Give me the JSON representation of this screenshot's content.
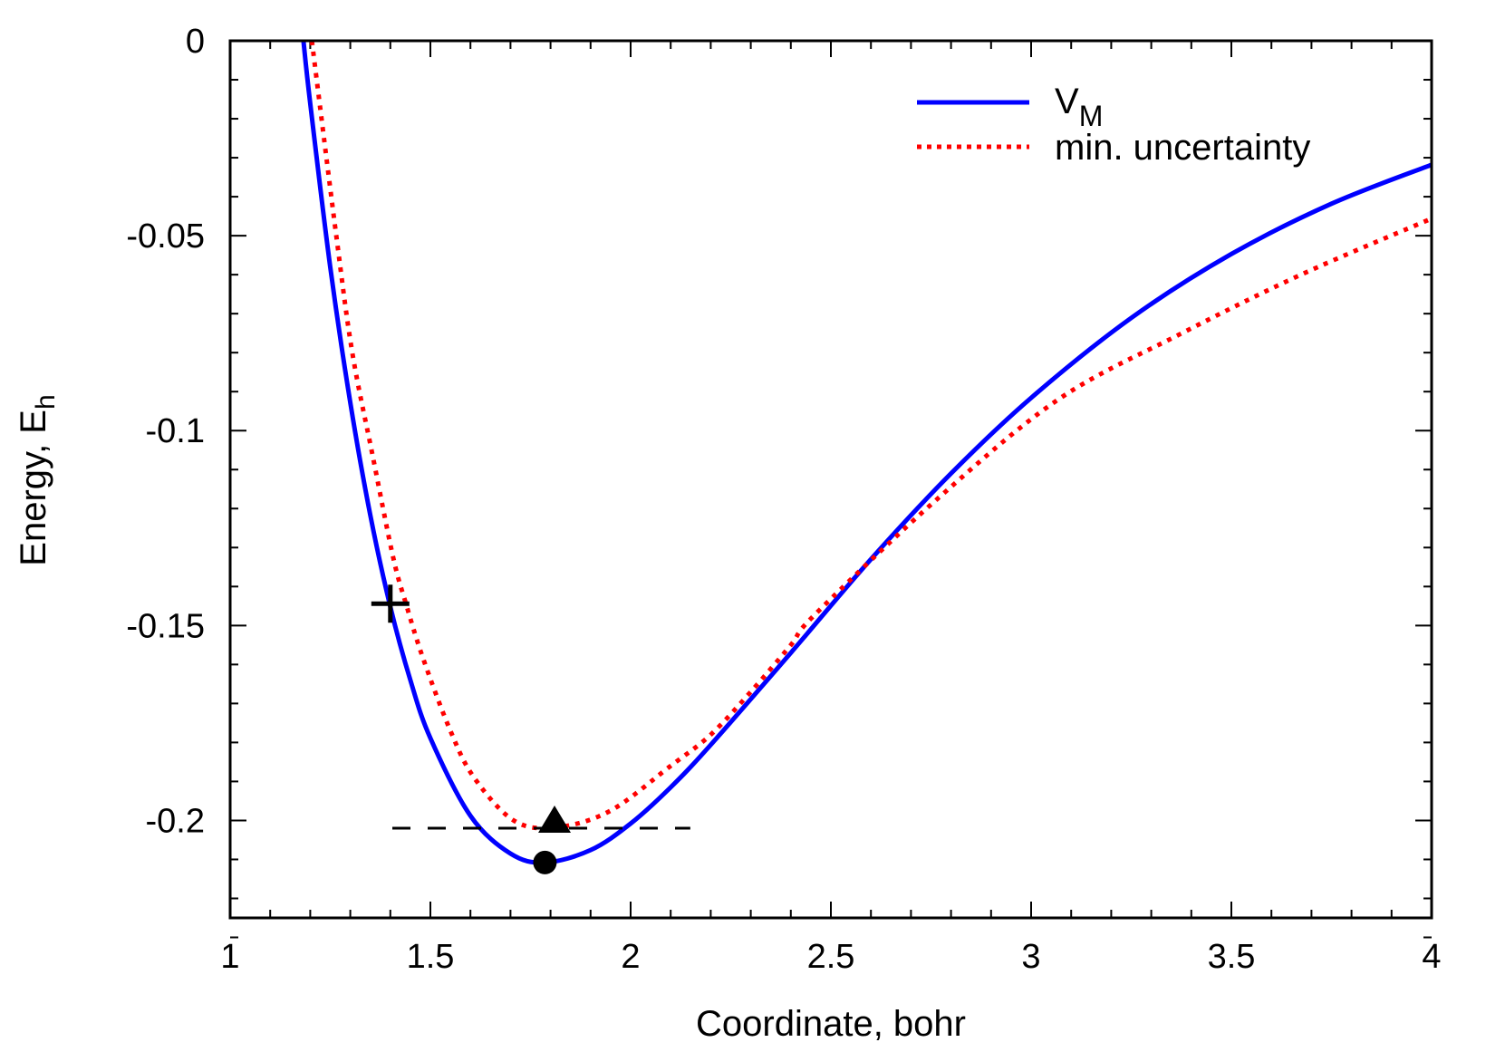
{
  "chart_data": {
    "type": "line",
    "title": "",
    "xlabel": "Coordinate, bohr",
    "ylabel": {
      "main": "Energy, E",
      "sub": "h"
    },
    "xlim": [
      1,
      4
    ],
    "ylim": [
      -0.225,
      0
    ],
    "xticks": [
      1,
      1.5,
      2,
      2.5,
      3,
      3.5,
      4
    ],
    "xtick_labels": [
      "1",
      "1.5",
      "2",
      "2.5",
      "3",
      "3.5",
      "4"
    ],
    "yticks": [
      0,
      -0.05,
      -0.1,
      -0.15,
      -0.2
    ],
    "ytick_labels": [
      "0",
      "-0.05",
      "-0.1",
      "-0.15",
      "-0.2"
    ],
    "x_minor_step": 0.1,
    "y_minor_step": 0.01,
    "grid": false,
    "legend_position": "top-right",
    "series": [
      {
        "name": "V",
        "name_sub": "M",
        "color": "#0000ff",
        "style": "solid",
        "points": [
          [
            1.183,
            0
          ],
          [
            1.2,
            -0.0161
          ],
          [
            1.25,
            -0.0581
          ],
          [
            1.3,
            -0.0928
          ],
          [
            1.35,
            -0.1217
          ],
          [
            1.4,
            -0.1452
          ],
          [
            1.45,
            -0.164
          ],
          [
            1.5,
            -0.1789
          ],
          [
            1.6,
            -0.1988
          ],
          [
            1.7,
            -0.2085
          ],
          [
            1.786,
            -0.2108
          ],
          [
            1.9,
            -0.2076
          ],
          [
            2.0,
            -0.2008
          ],
          [
            2.1,
            -0.1915
          ],
          [
            2.2,
            -0.1806
          ],
          [
            2.4,
            -0.157
          ],
          [
            2.6,
            -0.133
          ],
          [
            2.8,
            -0.111
          ],
          [
            3.0,
            -0.0916
          ],
          [
            3.25,
            -0.0711
          ],
          [
            3.5,
            -0.0547
          ],
          [
            3.75,
            -0.0418
          ],
          [
            4.0,
            -0.0318
          ]
        ]
      },
      {
        "name": "min. uncertainty",
        "color": "#ff0000",
        "style": "dotted",
        "points": [
          [
            1.204,
            0
          ],
          [
            1.265,
            -0.05
          ],
          [
            1.305,
            -0.08
          ],
          [
            1.355,
            -0.106
          ],
          [
            1.407,
            -0.1325
          ],
          [
            1.439,
            -0.1444
          ],
          [
            1.482,
            -0.1585
          ],
          [
            1.55,
            -0.177
          ],
          [
            1.609,
            -0.189
          ],
          [
            1.708,
            -0.2
          ],
          [
            1.812,
            -0.2018
          ],
          [
            1.948,
            -0.1976
          ],
          [
            2.1,
            -0.186
          ],
          [
            2.2,
            -0.178
          ],
          [
            2.3,
            -0.167
          ],
          [
            2.4,
            -0.155
          ],
          [
            2.462,
            -0.147
          ],
          [
            2.765,
            -0.1176
          ],
          [
            3.068,
            -0.092
          ],
          [
            3.371,
            -0.0753
          ],
          [
            3.674,
            -0.06
          ],
          [
            4.0,
            -0.0456
          ]
        ]
      }
    ],
    "markers": [
      {
        "shape": "cross",
        "x": 1.4,
        "y": -0.1444,
        "color": "#000000"
      },
      {
        "shape": "circle",
        "x": 1.786,
        "y": -0.2108,
        "color": "#000000"
      },
      {
        "shape": "triangle",
        "x": 1.81,
        "y": -0.2006,
        "color": "#000000"
      }
    ],
    "hline": {
      "y": -0.202,
      "x_from": 1.405,
      "x_to": 2.149,
      "style": "dashed",
      "color": "#000000"
    }
  }
}
